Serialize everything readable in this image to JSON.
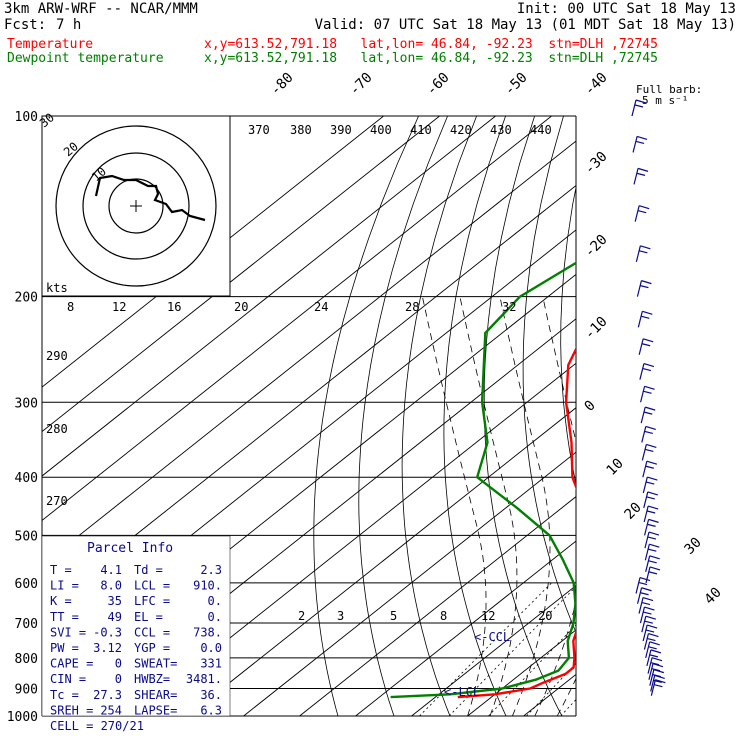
{
  "header": {
    "model": "3km ARW-WRF -- NCAR/MMM",
    "init": "Init: 00 UTC Sat 18 May 13",
    "fcst_label": "Fcst:",
    "fcst_value": "7 h",
    "valid": "Valid: 07 UTC Sat 18 May 13 (01 MDT Sat 18 May 13)",
    "temp_label": "Temperature",
    "dew_label": "Dewpoint temperature",
    "station_info": "x,y=613.52,791.18   lat,lon= 46.84, -92.23  stn=DLH ,72745"
  },
  "colors": {
    "temperature": "#ff0000",
    "dewpoint": "#008000",
    "isotherm": "#000000",
    "text_blue": "#0a0a8c"
  },
  "wind_legend": {
    "line1": "Full barb:",
    "line2": "5 m s⁻¹"
  },
  "hodograph": {
    "kts_label": "kts",
    "ring_labels": [
      "30",
      "20",
      "10"
    ]
  },
  "chart_data": {
    "type": "line",
    "title": "",
    "pressure_levels": [
      100,
      200,
      300,
      400,
      500,
      600,
      700,
      800,
      900,
      1000
    ],
    "pressure_labels": [
      "100",
      "200",
      "300",
      "400",
      "500",
      "600",
      "700",
      "800",
      "900",
      "1000"
    ],
    "isotherm_labels": [
      "-80",
      "-70",
      "-60",
      "-50",
      "-40",
      "-30",
      "-20",
      "-10",
      "0",
      "10",
      "20",
      "30",
      "40"
    ],
    "theta_labels": [
      "370",
      "380",
      "390",
      "400",
      "410",
      "420",
      "430",
      "440"
    ],
    "mixing_ratio_top_labels": [
      "8",
      "12",
      "16",
      "20",
      "24",
      "28",
      "32"
    ],
    "theta_e_labels": [
      "290",
      "280",
      "270"
    ],
    "mixing_ratio_labels": [
      "2",
      "3",
      "5",
      "8",
      "12",
      "20"
    ],
    "ccl_label": "CCL",
    "lcl_label": "LCL",
    "series": [
      {
        "name": "Temperature",
        "points": [
          [
            100,
            -64
          ],
          [
            130,
            -60
          ],
          [
            160,
            -63
          ],
          [
            180,
            -65
          ],
          [
            200,
            -68
          ],
          [
            220,
            -67
          ],
          [
            260,
            -61
          ],
          [
            300,
            -53
          ],
          [
            350,
            -43
          ],
          [
            400,
            -35
          ],
          [
            450,
            -26
          ],
          [
            500,
            -19
          ],
          [
            550,
            -14
          ],
          [
            600,
            -9
          ],
          [
            650,
            -5
          ],
          [
            700,
            -1
          ],
          [
            750,
            2
          ],
          [
            800,
            6
          ],
          [
            830,
            8
          ],
          [
            850,
            8
          ],
          [
            880,
            6
          ],
          [
            900,
            5
          ],
          [
            920,
            0
          ],
          [
            930,
            -6
          ]
        ]
      },
      {
        "name": "Dewpoint temperature",
        "points": [
          [
            100,
            -82
          ],
          [
            120,
            -80
          ],
          [
            150,
            -80
          ],
          [
            170,
            -82
          ],
          [
            200,
            -85
          ],
          [
            230,
            -83
          ],
          [
            300,
            -68
          ],
          [
            350,
            -58
          ],
          [
            400,
            -52
          ],
          [
            450,
            -38
          ],
          [
            500,
            -26
          ],
          [
            550,
            -18
          ],
          [
            600,
            -11
          ],
          [
            650,
            -6
          ],
          [
            700,
            -2
          ],
          [
            750,
            1
          ],
          [
            800,
            5
          ],
          [
            840,
            6
          ],
          [
            870,
            4
          ],
          [
            900,
            0
          ],
          [
            920,
            -8
          ],
          [
            930,
            -18
          ]
        ]
      }
    ],
    "wind_pressures": [
      100,
      115,
      130,
      150,
      175,
      200,
      225,
      250,
      275,
      300,
      325,
      350,
      375,
      400,
      425,
      450,
      475,
      500,
      525,
      550,
      575,
      600,
      625,
      650,
      675,
      700,
      725,
      750,
      775,
      800,
      825,
      850,
      870,
      890,
      910,
      925
    ]
  },
  "parcel_info": {
    "title": "Parcel Info",
    "rows": [
      [
        "T  =",
        "4.1",
        "Td =",
        "2.3"
      ],
      [
        "LI =",
        "8.0",
        "LCL =",
        "910."
      ],
      [
        "K  =",
        "35",
        "LFC =",
        "0."
      ],
      [
        "TT =",
        "49",
        "EL  =",
        "0."
      ],
      [
        "SVI =",
        "-0.3",
        "CCL =",
        "738."
      ],
      [
        "PW =",
        "3.12",
        "YGP =",
        "0.0"
      ],
      [
        "CAPE =",
        "0",
        "SWEAT=",
        "331"
      ],
      [
        "CIN =",
        "0",
        "HWBZ=",
        "3481."
      ],
      [
        "Tc =",
        "27.3",
        "SHEAR=",
        "36."
      ],
      [
        "SREH =",
        "254",
        "LAPSE=",
        "6.3"
      ]
    ],
    "cell": "CELL = 270/21"
  }
}
